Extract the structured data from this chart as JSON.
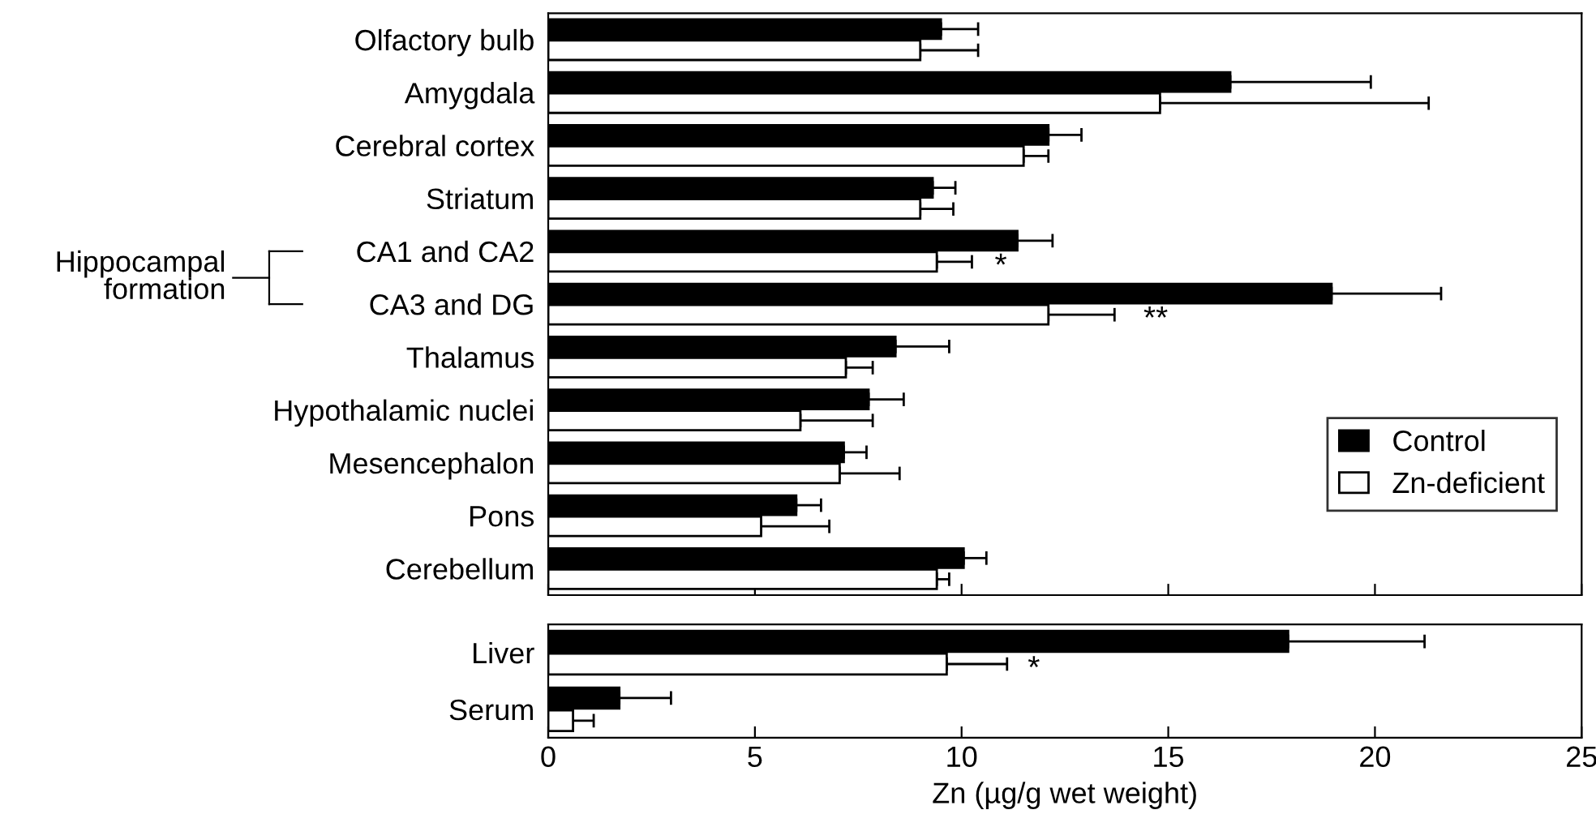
{
  "chart_data": [
    {
      "type": "bar",
      "orientation": "horizontal",
      "categories": [
        "Olfactory bulb",
        "Amygdala",
        "Cerebral cortex",
        "Striatum",
        "CA1 and CA2",
        "CA3 and DG",
        "Thalamus",
        "Hypothalamic nuclei",
        "Mesencephalon",
        "Pons",
        "Cerebellum"
      ],
      "series": [
        {
          "name": "Control",
          "color": "#000000",
          "values": [
            9.5,
            16.5,
            12.1,
            9.3,
            11.35,
            18.95,
            8.4,
            7.75,
            7.15,
            6.0,
            10.05
          ],
          "errors": [
            [
              9.5,
              10.4
            ],
            [
              16.5,
              19.9
            ],
            [
              12.1,
              12.9
            ],
            [
              9.3,
              9.85
            ],
            [
              11.35,
              12.2
            ],
            [
              18.95,
              21.6
            ],
            [
              8.4,
              9.7
            ],
            [
              7.75,
              8.6
            ],
            [
              7.15,
              7.7
            ],
            [
              6.0,
              6.6
            ],
            [
              10.05,
              10.6
            ]
          ]
        },
        {
          "name": "Zn-deficient",
          "color": "#ffffff",
          "values": [
            9.0,
            14.8,
            11.5,
            9.0,
            9.4,
            12.1,
            7.2,
            6.1,
            7.05,
            5.15,
            9.4
          ],
          "errors": [
            [
              9.0,
              10.4
            ],
            [
              14.8,
              21.3
            ],
            [
              11.5,
              12.1
            ],
            [
              9.0,
              9.8
            ],
            [
              9.4,
              10.25
            ],
            [
              12.1,
              13.7
            ],
            [
              7.2,
              7.85
            ],
            [
              6.1,
              7.85
            ],
            [
              7.05,
              8.5
            ],
            [
              5.15,
              6.8
            ],
            [
              9.4,
              9.7
            ]
          ]
        }
      ],
      "xlim": [
        0,
        25
      ],
      "xticks": [
        {
          "value": 0,
          "label": null
        },
        {
          "value": 5,
          "label": null
        },
        {
          "value": 10,
          "label": null
        },
        {
          "value": 15,
          "label": null
        },
        {
          "value": 20,
          "label": null
        },
        {
          "value": 25,
          "label": null
        }
      ],
      "tick_labels": "y",
      "legend": "right",
      "annotations": [
        "Hippocampal\nformation",
        {
          "text": "*",
          "x": 10.8,
          "y": "CA1 and CA2"
        },
        {
          "text": "**",
          "x": 14.4,
          "y": "CA3 and DG"
        }
      ]
    },
    {
      "type": "bar",
      "orientation": "horizontal",
      "categories": [
        "Liver",
        "Serum"
      ],
      "series": [
        {
          "color": "#000000",
          "values": [
            17.9,
            1.72
          ],
          "errors": [
            [
              17.9,
              21.2
            ],
            [
              1.72,
              2.97
            ]
          ]
        },
        {
          "color": "#ffffff",
          "values": [
            9.64,
            0.6
          ],
          "errors": [
            [
              9.64,
              11.1
            ],
            [
              0.6,
              1.1
            ]
          ]
        }
      ],
      "xlim": [
        0,
        25
      ],
      "xticks": [
        0,
        5,
        10,
        15,
        20,
        25
      ],
      "xlabel": "Zn (µg/g wet weight)",
      "annotations": [
        {
          "text": "*",
          "x": 11.6,
          "y": "Liver"
        }
      ]
    }
  ]
}
